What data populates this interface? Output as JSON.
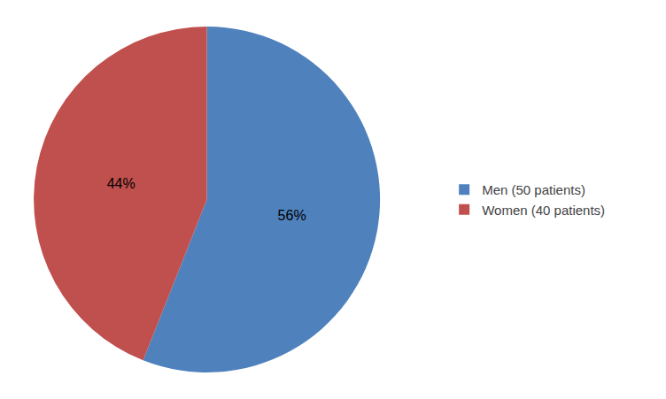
{
  "chart_data": {
    "type": "pie",
    "categories": [
      "Men (50 patients)",
      "Women (40 patients)"
    ],
    "values": [
      56,
      44
    ],
    "value_labels": [
      "56%",
      "44%"
    ],
    "colors": [
      "#4F81BD",
      "#C0504D"
    ],
    "data_labels": true,
    "legend": "right"
  }
}
